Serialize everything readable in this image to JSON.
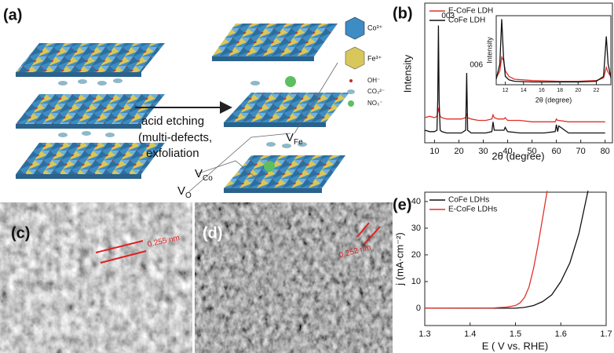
{
  "panel_a": {
    "label": "(a)",
    "legend": [
      "Co³⁺",
      "Fe³⁺",
      "OH⁻",
      "CO₃²⁻",
      "NO₃⁻"
    ],
    "process": [
      "acid etching",
      "(multi-defects,",
      "exfoliation"
    ],
    "vacancies": [
      {
        "main": "V",
        "sub": "O"
      },
      {
        "main": "V",
        "sub": "Co"
      },
      {
        "main": "V",
        "sub": "Fe"
      }
    ]
  },
  "panel_c": {
    "label": "(c)",
    "scale": "0.255 nm"
  },
  "panel_d": {
    "label": "(d)",
    "scale": "0.252 nm"
  },
  "chart_data": [
    {
      "type": "line",
      "label": "(b)",
      "x_label": "2θ (degree)",
      "y_label": "Intensity",
      "x": [
        6,
        8,
        10,
        11,
        11.3,
        11.6,
        11.9,
        12.3,
        13,
        15,
        18,
        21,
        22.8,
        23.2,
        23.6,
        25,
        28,
        31,
        33.5,
        34,
        34.5,
        36,
        38.5,
        39,
        40,
        45,
        50,
        55,
        59.5,
        60,
        60.5,
        61,
        65,
        70,
        75,
        80
      ],
      "xlim": [
        6,
        83
      ],
      "xticks": [
        10,
        20,
        30,
        40,
        50,
        60,
        70,
        80
      ],
      "ylim": [
        0,
        100
      ],
      "series": [
        {
          "name": "E-CoFe LDH",
          "color": "#e0302a",
          "values": [
            18,
            19,
            18,
            19,
            22,
            25,
            22,
            19,
            18,
            17,
            17,
            17,
            18,
            21,
            18,
            17,
            16,
            16,
            17,
            20,
            18,
            17,
            17,
            18,
            16,
            16,
            15,
            15,
            15,
            17,
            16,
            16,
            15,
            15,
            15,
            15
          ]
        },
        {
          "name": "CoFe LDH",
          "color": "#111111",
          "values": [
            9,
            8,
            8,
            9,
            30,
            84,
            30,
            9,
            8,
            7,
            7,
            7,
            9,
            50,
            9,
            7,
            7,
            7,
            8,
            15,
            9,
            9,
            9,
            11,
            8,
            7,
            7,
            7,
            8,
            13,
            8,
            12,
            7,
            7,
            7,
            7
          ]
        }
      ],
      "annotations": [
        "003",
        "006"
      ],
      "legend": "upper left"
    },
    {
      "type": "line",
      "x_label": "2θ (degree)",
      "y_label": "Intensity",
      "x": [
        11,
        11.4,
        11.6,
        11.8,
        12,
        12.4,
        13,
        15,
        18,
        20,
        22,
        22.8,
        23.1,
        23.3,
        23.6
      ],
      "xlim": [
        11,
        23.6
      ],
      "xticks": [
        12,
        14,
        16,
        18,
        20,
        22
      ],
      "ylim": [
        0,
        100
      ],
      "series": [
        {
          "color": "#e0302a",
          "values": [
            10,
            20,
            40,
            35,
            20,
            12,
            8,
            6,
            5,
            5,
            6,
            10,
            25,
            18,
            12
          ]
        },
        {
          "color": "#111111",
          "values": [
            8,
            30,
            95,
            40,
            12,
            7,
            5,
            4,
            4,
            4,
            5,
            12,
            70,
            30,
            10
          ]
        }
      ]
    },
    {
      "type": "line",
      "label": "(e)",
      "x_label": "E ( V vs. RHE)",
      "y_label": "j (mA·cm⁻²)",
      "xlim": [
        1.3,
        1.7
      ],
      "xticks": [
        1.3,
        1.4,
        1.5,
        1.6,
        1.7
      ],
      "ylim": [
        -6.5,
        43.5
      ],
      "yticks": [
        0,
        10,
        20,
        30,
        40
      ],
      "series": [
        {
          "name": "CoFe LDHs",
          "color": "#111111",
          "x": [
            1.3,
            1.45,
            1.5,
            1.52,
            1.54,
            1.56,
            1.58,
            1.6,
            1.62,
            1.64,
            1.66
          ],
          "values": [
            0,
            0,
            0,
            0.3,
            1,
            2.5,
            5,
            10,
            17,
            28,
            44
          ]
        },
        {
          "name": "E-CoFe LDHs",
          "color": "#e0302a",
          "x": [
            1.3,
            1.45,
            1.48,
            1.5,
            1.51,
            1.52,
            1.53,
            1.54,
            1.55,
            1.56,
            1.57
          ],
          "values": [
            0,
            0.1,
            0.4,
            1,
            2,
            4,
            8,
            15,
            24,
            34,
            44
          ]
        }
      ],
      "legend": "upper left"
    }
  ]
}
